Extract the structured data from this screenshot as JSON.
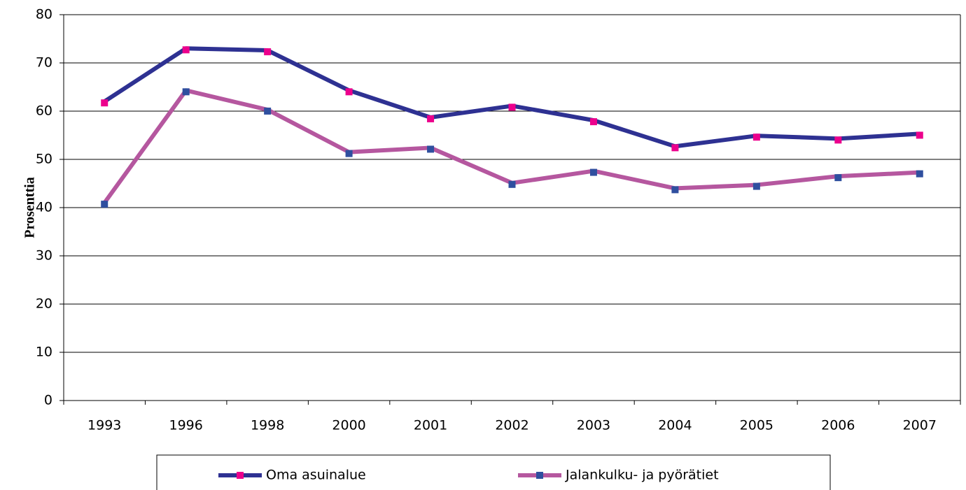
{
  "chart_data": {
    "type": "line",
    "y_label": "Prosenttia",
    "categories": [
      "1993",
      "1996",
      "1998",
      "2000",
      "2001",
      "2002",
      "2003",
      "2004",
      "2005",
      "2006",
      "2007"
    ],
    "series": [
      {
        "name": "Oma asuinalue",
        "color": "#2e3192",
        "marker_color": "#ec008c",
        "values": [
          62,
          73,
          72.6,
          64.3,
          58.7,
          61.1,
          58.1,
          52.7,
          54.9,
          54.3,
          55.3
        ]
      },
      {
        "name": "Jalankulku- ja pyörätiet",
        "color": "#b5579f",
        "marker_color": "#2f4f9f",
        "values": [
          41,
          64.3,
          60.3,
          51.5,
          52.4,
          45.1,
          47.6,
          44,
          44.7,
          46.5,
          47.3
        ]
      }
    ],
    "ylim": [
      0,
      80
    ],
    "yticks": [
      0,
      10,
      20,
      30,
      40,
      50,
      60,
      70,
      80
    ],
    "grid": true,
    "legend": "bottom"
  }
}
